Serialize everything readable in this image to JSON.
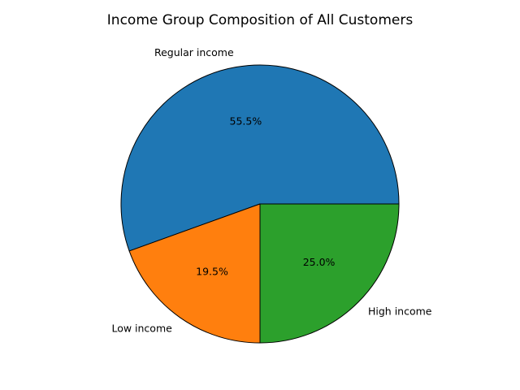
{
  "chart_data": {
    "type": "pie",
    "title": "Income Group Composition of All Customers",
    "slices": [
      {
        "label": "Regular income",
        "value": 55.5,
        "pct_label": "55.5%",
        "color": "#1f77b4"
      },
      {
        "label": "Low income",
        "value": 19.5,
        "pct_label": "19.5%",
        "color": "#ff7f0e"
      },
      {
        "label": "High income",
        "value": 25.0,
        "pct_label": "25.0%",
        "color": "#2ca02c"
      }
    ],
    "start_angle_deg": 0,
    "direction": "counterclockwise",
    "edge_color": "#000000"
  }
}
